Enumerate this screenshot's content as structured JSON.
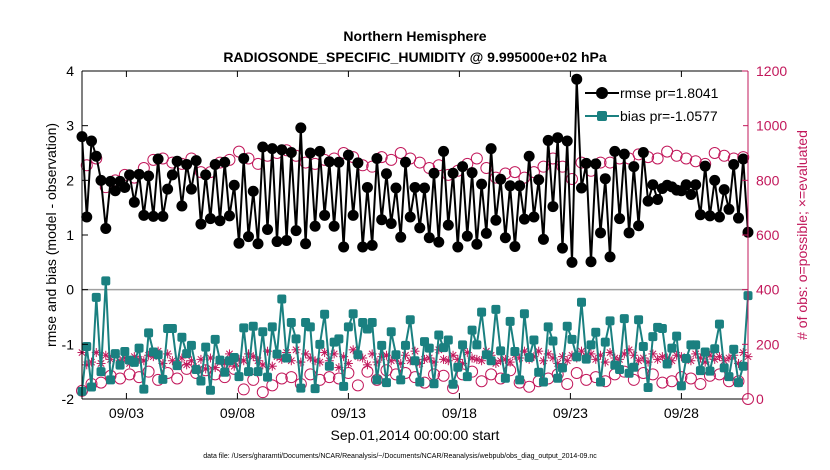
{
  "chart_data": {
    "type": "line",
    "title": "Northern Hemisphere",
    "subtitle": "RADIOSONDE_SPECIFIC_HUMIDITY @ 9.995000e+02 hPa",
    "xlabel": "Sep.01,2014 00:00:00 start",
    "ylabel": "rmse and bias (model - observation)",
    "ylabel_right": "# of obs: o=possible; ×=evaluated",
    "footnote": "data file: /Users/gharamti/Documents/NCAR/Reanalysis/~/Documents/NCAR/Reanalysis/webpub/obs_diag_output_2014-09.nc",
    "xlim": [
      1.0,
      31.0
    ],
    "ylim": [
      -2,
      4
    ],
    "ylim_right": [
      0,
      1200
    ],
    "x_ticks": [
      3,
      8,
      13,
      18,
      23,
      28
    ],
    "x_tick_labels": [
      "09/03",
      "09/08",
      "09/13",
      "09/18",
      "09/23",
      "09/28"
    ],
    "y_ticks": [
      -2,
      -1,
      0,
      1,
      2,
      3,
      4
    ],
    "y_tick_labels": [
      "-2",
      "-1",
      "0",
      "1",
      "2",
      "3",
      "4"
    ],
    "y_ticks_right": [
      0,
      200,
      400,
      600,
      800,
      1000,
      1200
    ],
    "y_tick_labels_right": [
      "0",
      "200",
      "400",
      "600",
      "800",
      "1000",
      "1200"
    ],
    "legend_position": "top-right",
    "colors": {
      "rmse": "#000000",
      "bias": "#1a8080",
      "obs": "#c2185b",
      "zero_line": "#a0a0a0"
    },
    "series": [
      {
        "name": "rmse pr=1.8041",
        "axis": "left",
        "values": [
          2.8,
          1.33,
          2.72,
          2.44,
          2.0,
          1.12,
          1.98,
          1.81,
          1.98,
          1.87,
          2.1,
          1.6,
          2.11,
          1.36,
          2.08,
          1.34,
          2.39,
          1.34,
          1.84,
          2.1,
          2.35,
          1.53,
          2.29,
          1.84,
          2.36,
          1.2,
          2.1,
          1.3,
          2.29,
          1.26,
          2.33,
          1.35,
          1.91,
          0.85,
          2.4,
          0.97,
          1.8,
          0.84,
          2.61,
          1.1,
          2.58,
          0.88,
          2.56,
          0.9,
          2.51,
          1.08,
          2.96,
          0.84,
          2.5,
          1.16,
          2.53,
          1.36,
          2.34,
          1.16,
          2.33,
          0.78,
          2.46,
          1.36,
          2.32,
          0.78,
          1.87,
          0.81,
          2.4,
          1.28,
          2.12,
          1.21,
          1.86,
          0.96,
          2.33,
          1.33,
          1.87,
          1.13,
          1.86,
          0.95,
          2.13,
          0.87,
          2.53,
          1.18,
          2.13,
          0.78,
          2.25,
          0.98,
          2.14,
          0.83,
          1.93,
          1.03,
          2.58,
          1.27,
          2.02,
          0.95,
          1.9,
          0.79,
          1.9,
          1.29,
          2.44,
          1.33,
          2.01,
          0.92,
          2.73,
          1.52,
          2.78,
          0.76,
          2.72,
          0.5,
          3.85,
          1.86,
          2.31,
          0.51,
          2.3,
          1.04,
          2.03,
          0.6,
          2.53,
          1.3,
          2.48,
          1.04,
          2.25,
          1.17,
          2.51,
          1.62,
          1.92,
          1.65,
          1.85,
          1.91,
          1.88,
          1.82,
          1.81,
          1.92,
          1.74,
          1.92,
          1.37,
          2.26,
          1.35,
          2.0,
          1.33,
          1.83,
          1.47,
          2.29,
          1.31,
          2.39,
          1.05
        ]
      },
      {
        "name": "bias pr=-1.0577",
        "axis": "left",
        "values": [
          -1.86,
          -1.04,
          -1.78,
          -0.14,
          -1.5,
          0.16,
          -1.65,
          -1.17,
          -1.38,
          -1.13,
          -1.29,
          -1.33,
          -1.07,
          -1.82,
          -0.79,
          -1.14,
          -1.19,
          -1.64,
          -0.71,
          -0.71,
          -1.39,
          -0.87,
          -1.17,
          -1.02,
          -1.46,
          -1.67,
          -1.05,
          -1.84,
          -0.91,
          -1.29,
          -1.51,
          -1.3,
          -1.24,
          -1.59,
          -0.7,
          -1.5,
          -0.67,
          -1.5,
          -0.77,
          -1.6,
          -0.68,
          -1.18,
          -0.17,
          -1.25,
          -0.6,
          -0.9,
          -1.8,
          -0.6,
          -0.68,
          -1.81,
          -1.0,
          -0.45,
          -1.4,
          -0.96,
          -0.9,
          -1.77,
          -0.68,
          -0.44,
          -1.19,
          -0.6,
          -0.72,
          -0.6,
          -1.65,
          -1.02,
          -1.7,
          -0.77,
          -1.19,
          -1.65,
          -1.02,
          -0.55,
          -1.3,
          -1.69,
          -0.95,
          -1.07,
          -1.72,
          -0.83,
          -1.06,
          -0.92,
          -1.73,
          -1.42,
          -1.01,
          -1.59,
          -0.74,
          -1.01,
          -0.41,
          -1.19,
          -1.3,
          -0.36,
          -1.12,
          -1.62,
          -0.58,
          -1.13,
          -1.65,
          -0.44,
          -1.24,
          -0.92,
          -1.51,
          -1.69,
          -0.68,
          -0.94,
          -1.62,
          -1.43,
          -0.67,
          -0.91,
          -1.23,
          -0.23,
          -1.27,
          -1.01,
          -0.78,
          -1.69,
          -0.96,
          -0.57,
          -1.38,
          -1.46,
          -0.53,
          -1.53,
          -1.42,
          -0.55,
          -1.04,
          -1.79,
          -0.86,
          -0.69,
          -0.71,
          -1.36,
          -1.07,
          -0.85,
          -1.76,
          -1.26,
          -1.01,
          -1.01,
          -1.48,
          -1.14,
          -1.49,
          -1.08,
          -0.63,
          -1.43,
          -1.59,
          -1.09,
          -1.7,
          -1.4,
          -0.11
        ]
      },
      {
        "name": "possible",
        "axis": "right",
        "marker": "circle",
        "values": [
          30,
          855,
          55,
          880,
          60,
          775,
          85,
          800,
          75,
          820,
          90,
          810,
          80,
          845,
          100,
          875,
          70,
          880,
          95,
          865,
          75,
          860,
          110,
          880,
          95,
          830,
          105,
          830,
          90,
          865,
          80,
          875,
          110,
          905,
          35,
          880,
          70,
          860,
          25,
          890,
          50,
          900,
          75,
          910,
          80,
          890,
          55,
          865,
          90,
          860,
          70,
          875,
          80,
          880,
          75,
          900,
          95,
          885,
          50,
          855,
          100,
          850,
          70,
          885,
          105,
          875,
          90,
          900,
          95,
          880,
          80,
          865,
          60,
          845,
          90,
          855,
          85,
          820,
          40,
          835,
          90,
          860,
          100,
          880,
          65,
          845,
          90,
          810,
          75,
          825,
          105,
          830,
          60,
          810,
          45,
          830,
          65,
          850,
          75,
          880,
          90,
          850,
          55,
          805,
          95,
          865,
          70,
          835,
          80,
          865,
          65,
          865,
          90,
          880,
          100,
          880,
          70,
          895,
          95,
          885,
          90,
          880,
          60,
          905,
          65,
          890,
          80,
          880,
          75,
          870,
          55,
          860,
          85,
          900,
          90,
          890,
          65,
          880,
          65,
          885,
          0
        ]
      },
      {
        "name": "evaluated",
        "axis": "right",
        "marker": "asterisk",
        "values": [
          170,
          125,
          135,
          170,
          130,
          160,
          145,
          165,
          140,
          150,
          130,
          155,
          145,
          140,
          160,
          155,
          175,
          130,
          165,
          140,
          125,
          150,
          125,
          140,
          115,
          145,
          110,
          150,
          115,
          140,
          130,
          165,
          120,
          145,
          140,
          165,
          155,
          140,
          125,
          175,
          120,
          155,
          145,
          170,
          140,
          180,
          135,
          165,
          150,
          140,
          135,
          170,
          140,
          165,
          115,
          155,
          130,
          180,
          155,
          150,
          125,
          165,
          135,
          155,
          160,
          140,
          150,
          130,
          160,
          140,
          175,
          130,
          145,
          150,
          135,
          180,
          145,
          140,
          160,
          145,
          130,
          170,
          150,
          145,
          140,
          175,
          160,
          130,
          140,
          145,
          135,
          160,
          150,
          175,
          145,
          155,
          175,
          140,
          165,
          150,
          130,
          155,
          140,
          160,
          150,
          175,
          155,
          165,
          145,
          160,
          135,
          170,
          150,
          145,
          165,
          180,
          160,
          140,
          150,
          135,
          165,
          145,
          155,
          150,
          140,
          160,
          155,
          145,
          140,
          165,
          150,
          135,
          160,
          145,
          155,
          140,
          150,
          160,
          130,
          170,
          155
        ]
      }
    ]
  }
}
